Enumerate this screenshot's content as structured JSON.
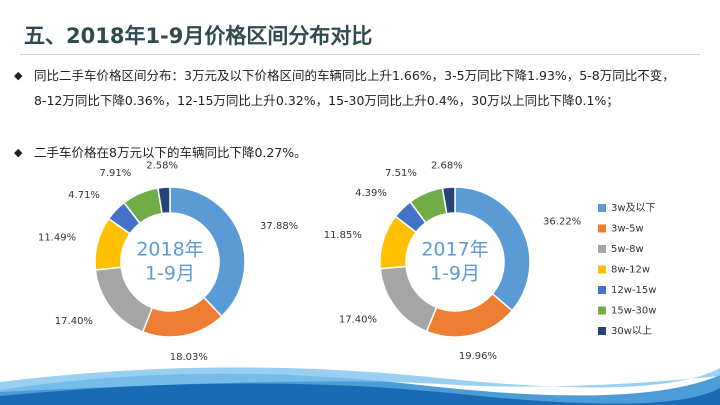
{
  "slide": {
    "title": "五、2018年1-9月价格区间分布对比",
    "bullets": [
      "同比二手车价格区间分布：3万元及以下价格区间的车辆同比上升1.66%，3-5万同比下降1.93%，5-8万同比不变，8-12万同比下降0.36%，12-15万同比上升0.32%，15-30万同比上升0.4%，30万以上同比下降0.1%；",
      "二手车价格在8万元以下的车辆同比下降0.27%。"
    ]
  },
  "chart_data": [
    {
      "type": "donut",
      "center_text": [
        "2018年",
        "1-9月"
      ],
      "categories": [
        "3w及以下",
        "3w-5w",
        "5w-8w",
        "8w-12w",
        "12w-15w",
        "15w-30w",
        "30w以上"
      ],
      "colors": [
        "#5B9BD5",
        "#ED7D31",
        "#A5A5A5",
        "#FFC000",
        "#4472C4",
        "#70AD47",
        "#264478"
      ],
      "values": [
        37.88,
        18.03,
        17.4,
        11.49,
        4.71,
        7.91,
        2.58
      ],
      "value_labels": [
        "37.88%",
        "18.03%",
        "17.40%",
        "11.49%",
        "4.71%",
        "7.91%",
        "2.58%"
      ]
    },
    {
      "type": "donut",
      "center_text": [
        "2017年",
        "1-9月"
      ],
      "categories": [
        "3w及以下",
        "3w-5w",
        "5w-8w",
        "8w-12w",
        "12w-15w",
        "15w-30w",
        "30w以上"
      ],
      "colors": [
        "#5B9BD5",
        "#ED7D31",
        "#A5A5A5",
        "#FFC000",
        "#4472C4",
        "#70AD47",
        "#264478"
      ],
      "values": [
        36.22,
        19.96,
        17.4,
        11.85,
        4.39,
        7.51,
        2.68
      ],
      "value_labels": [
        "36.22%",
        "19.96%",
        "17.40%",
        "11.85%",
        "4.39%",
        "7.51%",
        "2.68%"
      ],
      "legend": "right"
    }
  ]
}
